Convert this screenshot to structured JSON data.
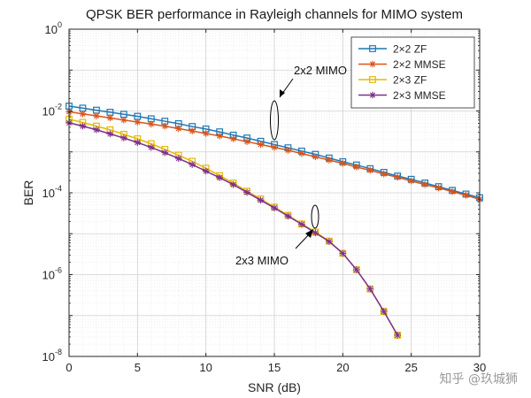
{
  "chart_data": {
    "type": "line",
    "title": "QPSK BER performance in Rayleigh channels for MIMO system",
    "xlabel": "SNR (dB)",
    "ylabel": "BER",
    "xlim": [
      0,
      30
    ],
    "ylim_log10": [
      -8,
      0
    ],
    "yscale": "log",
    "grid": true,
    "x_ticks": [
      "0",
      "5",
      "10",
      "15",
      "20",
      "25",
      "30"
    ],
    "y_ticks": [
      {
        "base": "10",
        "exp": "0"
      },
      {
        "base": "10",
        "exp": "-2"
      },
      {
        "base": "10",
        "exp": "-4"
      },
      {
        "base": "10",
        "exp": "-6"
      },
      {
        "base": "10",
        "exp": "-8"
      }
    ],
    "legend_position": "top-right",
    "series": [
      {
        "name": "2×2 ZF",
        "color": "#1f77b4",
        "marker": "square",
        "x": [
          0,
          1,
          2,
          3,
          4,
          5,
          6,
          7,
          8,
          9,
          10,
          11,
          12,
          13,
          14,
          15,
          16,
          17,
          18,
          19,
          20,
          21,
          22,
          23,
          24,
          25,
          26,
          27,
          28,
          29,
          30
        ],
        "log10_y": [
          -1.88,
          -1.93,
          -1.98,
          -2.03,
          -2.08,
          -2.13,
          -2.19,
          -2.25,
          -2.31,
          -2.38,
          -2.44,
          -2.51,
          -2.59,
          -2.66,
          -2.74,
          -2.82,
          -2.9,
          -2.98,
          -3.06,
          -3.15,
          -3.24,
          -3.32,
          -3.41,
          -3.5,
          -3.59,
          -3.67,
          -3.76,
          -3.85,
          -3.94,
          -4.03,
          -4.12
        ]
      },
      {
        "name": "2×2 MMSE",
        "color": "#d95319",
        "marker": "asterisk",
        "x": [
          0,
          1,
          2,
          3,
          4,
          5,
          6,
          7,
          8,
          9,
          10,
          11,
          12,
          13,
          14,
          15,
          16,
          17,
          18,
          19,
          20,
          21,
          22,
          23,
          24,
          25,
          26,
          27,
          28,
          29,
          30
        ],
        "log10_y": [
          -2.02,
          -2.07,
          -2.12,
          -2.17,
          -2.22,
          -2.27,
          -2.32,
          -2.37,
          -2.43,
          -2.49,
          -2.55,
          -2.61,
          -2.68,
          -2.75,
          -2.82,
          -2.89,
          -2.96,
          -3.04,
          -3.12,
          -3.2,
          -3.28,
          -3.37,
          -3.45,
          -3.54,
          -3.62,
          -3.71,
          -3.8,
          -3.88,
          -3.97,
          -4.06,
          -4.16
        ]
      },
      {
        "name": "2×3 ZF",
        "color": "#e6b800",
        "marker": "square",
        "x": [
          0,
          1,
          2,
          3,
          4,
          5,
          6,
          7,
          8,
          9,
          10,
          11,
          12,
          13,
          14,
          15,
          16,
          17,
          18,
          19,
          20,
          21,
          22,
          23,
          24
        ],
        "log10_y": [
          -2.2,
          -2.28,
          -2.37,
          -2.46,
          -2.57,
          -2.68,
          -2.8,
          -2.94,
          -3.08,
          -3.23,
          -3.4,
          -3.58,
          -3.76,
          -3.96,
          -4.15,
          -4.35,
          -4.55,
          -4.76,
          -4.96,
          -5.18,
          -5.48,
          -5.88,
          -6.35,
          -6.9,
          -7.48
        ]
      },
      {
        "name": "2×3 MMSE",
        "color": "#7e2f8e",
        "marker": "asterisk",
        "x": [
          0,
          1,
          2,
          3,
          4,
          5,
          6,
          7,
          8,
          9,
          10,
          11,
          12,
          13,
          14,
          15,
          16,
          17,
          18,
          19,
          20,
          21,
          22,
          23,
          24
        ],
        "log10_y": [
          -2.29,
          -2.37,
          -2.46,
          -2.56,
          -2.66,
          -2.77,
          -2.89,
          -3.02,
          -3.16,
          -3.31,
          -3.47,
          -3.63,
          -3.8,
          -3.99,
          -4.18,
          -4.37,
          -4.57,
          -4.77,
          -4.98,
          -5.19,
          -5.48,
          -5.88,
          -6.35,
          -6.9,
          -7.48
        ]
      }
    ],
    "annotations": [
      {
        "text": "2x2 MIMO",
        "target": "2×2 curves at SNR 15 dB"
      },
      {
        "text": "2x3 MIMO",
        "target": "2×3 curves at SNR 18 dB"
      }
    ]
  },
  "watermark": "知乎 @玖城狮"
}
